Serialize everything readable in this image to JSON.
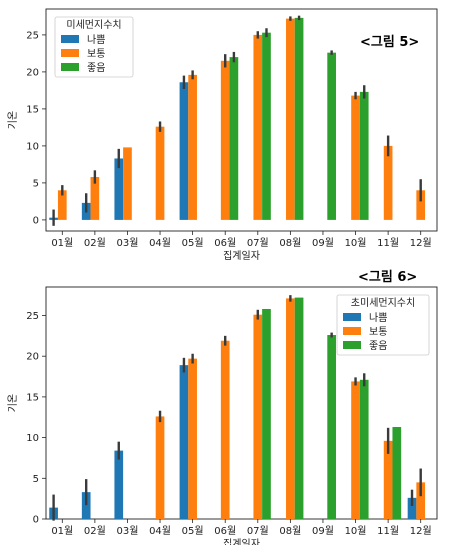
{
  "captions": [
    "<그림 5>",
    "<그림 6>"
  ],
  "colors": {
    "나쁨": "#1f77b4",
    "보통": "#ff7f0e",
    "좋음": "#2ca02c",
    "err": "#3a3a3a"
  },
  "chart_data": [
    {
      "type": "bar",
      "xlabel": "집계일자",
      "ylabel": "기온",
      "ylim": [
        -1.5,
        28.5
      ],
      "yticks": [
        0,
        5,
        10,
        15,
        20,
        25
      ],
      "categories": [
        "01월",
        "02월",
        "03월",
        "04월",
        "05월",
        "06월",
        "07월",
        "08월",
        "09월",
        "10월",
        "11월",
        "12월"
      ],
      "legend": {
        "title": "미세먼지수치",
        "position": "top-left"
      },
      "series": [
        {
          "name": "나쁨",
          "values": [
            0.3,
            2.3,
            8.3,
            null,
            18.6,
            null,
            null,
            null,
            null,
            null,
            null,
            null
          ],
          "err": [
            1.1,
            1.3,
            1.3,
            null,
            0.9,
            null,
            null,
            null,
            null,
            null,
            null,
            null
          ]
        },
        {
          "name": "보통",
          "values": [
            4.0,
            5.8,
            9.8,
            12.6,
            19.6,
            21.5,
            25.0,
            27.2,
            null,
            16.8,
            10.0,
            4.0
          ],
          "err": [
            0.7,
            0.9,
            0,
            0.7,
            0.6,
            0.9,
            0.5,
            0.3,
            null,
            0.5,
            1.4,
            1.5
          ]
        },
        {
          "name": "좋음",
          "values": [
            null,
            null,
            null,
            null,
            null,
            22.0,
            25.3,
            27.3,
            22.6,
            17.3,
            null,
            null
          ],
          "err": [
            null,
            null,
            null,
            null,
            null,
            0.7,
            0.6,
            0.3,
            0.3,
            0.9,
            null,
            null
          ]
        }
      ]
    },
    {
      "type": "bar",
      "xlabel": "집계일자",
      "ylabel": "기온",
      "ylim": [
        0,
        28.5
      ],
      "yticks": [
        0,
        5,
        10,
        15,
        20,
        25
      ],
      "categories": [
        "01월",
        "02월",
        "03월",
        "04월",
        "05월",
        "06월",
        "07월",
        "08월",
        "09월",
        "10월",
        "11월",
        "12월"
      ],
      "legend": {
        "title": "초미세먼지수치",
        "position": "top-right"
      },
      "series": [
        {
          "name": "나쁨",
          "values": [
            1.4,
            3.3,
            8.4,
            null,
            18.9,
            null,
            null,
            null,
            null,
            null,
            null,
            2.6
          ],
          "err": [
            1.6,
            1.6,
            1.1,
            null,
            0.9,
            null,
            null,
            null,
            null,
            null,
            null,
            1.0
          ]
        },
        {
          "name": "보통",
          "values": [
            null,
            null,
            null,
            12.6,
            19.7,
            21.9,
            25.1,
            27.1,
            null,
            16.9,
            9.6,
            4.5
          ],
          "err": [
            null,
            null,
            null,
            0.7,
            0.6,
            0.6,
            0.6,
            0.4,
            null,
            0.5,
            1.6,
            1.7
          ]
        },
        {
          "name": "좋음",
          "values": [
            null,
            null,
            null,
            null,
            null,
            null,
            25.8,
            27.2,
            22.6,
            17.1,
            11.3,
            null
          ],
          "err": [
            null,
            null,
            null,
            null,
            null,
            null,
            0,
            0,
            0.3,
            0.8,
            0,
            null
          ]
        }
      ]
    }
  ]
}
